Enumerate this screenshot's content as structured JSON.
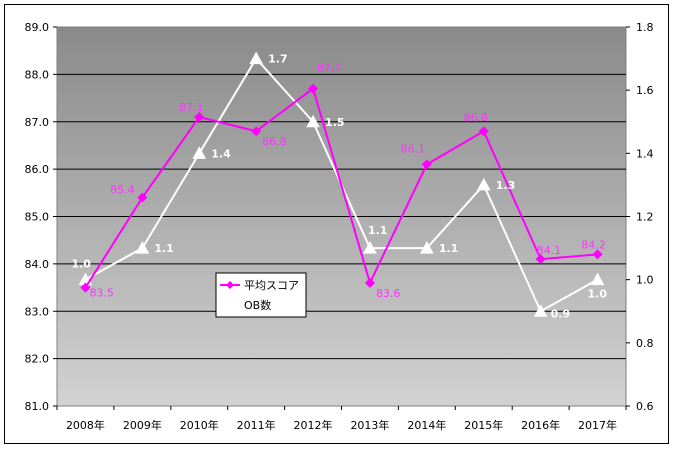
{
  "chart_data": {
    "type": "line",
    "title": "",
    "xlabel": "",
    "ylabel": "",
    "categories": [
      "2008年",
      "2009年",
      "2010年",
      "2011年",
      "2012年",
      "2013年",
      "2014年",
      "2015年",
      "2016年",
      "2017年"
    ],
    "series": [
      {
        "name": "平均スコア",
        "axis": "left",
        "color": "#ff00ff",
        "marker": "diamond",
        "values": [
          83.5,
          85.4,
          87.1,
          86.8,
          87.7,
          83.6,
          86.1,
          86.8,
          84.1,
          84.2
        ],
        "labels": [
          "83.5",
          "85.4",
          "87.1",
          "86.8",
          "87.7",
          "83.6",
          "86.1",
          "86.8",
          "84.1",
          "84.2"
        ]
      },
      {
        "name": "OB数",
        "axis": "right",
        "color": "#ffffff",
        "marker": "triangle",
        "values": [
          1.0,
          1.1,
          1.4,
          1.7,
          1.5,
          1.1,
          1.1,
          1.3,
          0.9,
          1.0
        ],
        "labels": [
          "1.0",
          "1.1",
          "1.4",
          "1.7",
          "1.5",
          "1.1",
          "1.1",
          "1.3",
          "0.9",
          "1.0"
        ]
      }
    ],
    "ylim_left": [
      81.0,
      89.0
    ],
    "ylim_right": [
      0.6,
      1.8
    ],
    "yticks_left": [
      "81.0",
      "82.0",
      "83.0",
      "84.0",
      "85.0",
      "86.0",
      "87.0",
      "88.0",
      "89.0"
    ],
    "yticks_right": [
      "0.6",
      "0.8",
      "1.0",
      "1.2",
      "1.4",
      "1.6",
      "1.8"
    ],
    "grid": true,
    "legend": "inside-left"
  }
}
